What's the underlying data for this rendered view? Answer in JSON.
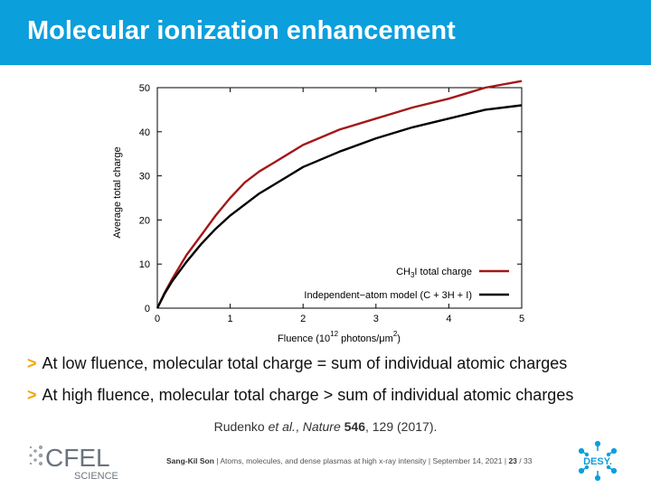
{
  "slide": {
    "title": "Molecular ionization enhancement",
    "bullets": [
      "At low fluence, molecular total charge = sum of individual atomic charges",
      "At high fluence, molecular total charge > sum of individual atomic charges"
    ],
    "bullet_marker": ">",
    "citation": {
      "authors": "Rudenko ",
      "etal": "et al.",
      "sep": ", ",
      "journal": "Nature",
      "volume": "546",
      "rest": ", 129 (2017)."
    },
    "footer": {
      "author": "Sang-Kil Son",
      "text": " | Atoms, molecules, and dense plasmas at high x-ray intensity | September 14, 2021 | ",
      "page": "23",
      "total": " / 33"
    },
    "logos": {
      "left": {
        "main": "CFEL",
        "sub": "SCIENCE"
      },
      "right": {
        "main": "DESY."
      }
    },
    "colors": {
      "title_bar": "#0b9fdc",
      "bullet_marker": "#f7a400"
    }
  },
  "chart_data": {
    "type": "line",
    "xlabel": {
      "pre": "Fluence (10",
      "sup": "12",
      "post": " photons/μm",
      "sup2": "2",
      "end": ")"
    },
    "ylabel": "Average total charge",
    "xlim": [
      0,
      5
    ],
    "ylim": [
      0,
      50
    ],
    "xticks": [
      0,
      1,
      2,
      3,
      4,
      5
    ],
    "yticks": [
      0,
      10,
      20,
      30,
      40,
      50
    ],
    "grid": false,
    "legend_position": "bottom-right",
    "series": [
      {
        "name": "CH3I total charge",
        "legend": {
          "pre": "CH",
          "sub": "3",
          "post": "I total charge"
        },
        "color": "#a31818",
        "x": [
          0,
          0.1,
          0.2,
          0.4,
          0.6,
          0.8,
          1.0,
          1.2,
          1.4,
          1.6,
          1.8,
          2.0,
          2.5,
          3.0,
          3.5,
          4.0,
          4.5,
          5.0
        ],
        "y": [
          0,
          3.5,
          6.5,
          12,
          16.5,
          21,
          25,
          28.5,
          31,
          33,
          35,
          37,
          40.5,
          43,
          45.5,
          47.5,
          50,
          51.5
        ]
      },
      {
        "name": "Independent−atom model (C + 3H + I)",
        "legend": {
          "pre": "Independent−atom model (C + 3H + I)",
          "sub": "",
          "post": ""
        },
        "color": "#000000",
        "x": [
          0,
          0.1,
          0.2,
          0.4,
          0.6,
          0.8,
          1.0,
          1.2,
          1.4,
          1.6,
          1.8,
          2.0,
          2.5,
          3.0,
          3.5,
          4.0,
          4.5,
          5.0
        ],
        "y": [
          0,
          3.3,
          6,
          10.5,
          14.5,
          18,
          21,
          23.5,
          26,
          28,
          30,
          32,
          35.5,
          38.5,
          41,
          43,
          45,
          46
        ]
      }
    ]
  }
}
